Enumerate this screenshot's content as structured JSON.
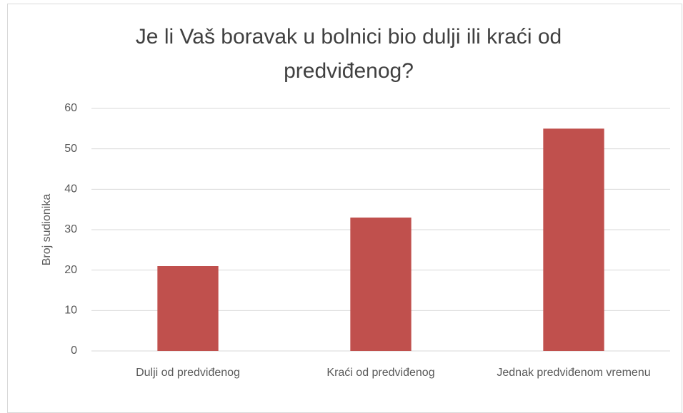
{
  "chart_data": {
    "type": "bar",
    "title": "Je li Vaš boravak u bolnici bio dulji ili kraći od predviđenog?",
    "y_label": "Broj sudionika",
    "categories": [
      "Dulji od predviđenog",
      "Kraći od predviđenog",
      "Jednak predviđenom vremenu"
    ],
    "values": [
      21,
      33,
      55
    ],
    "color": "#c0504d",
    "ylim": [
      0,
      60
    ],
    "yticks": [
      0,
      10,
      20,
      30,
      40,
      50,
      60
    ],
    "grid": true
  }
}
